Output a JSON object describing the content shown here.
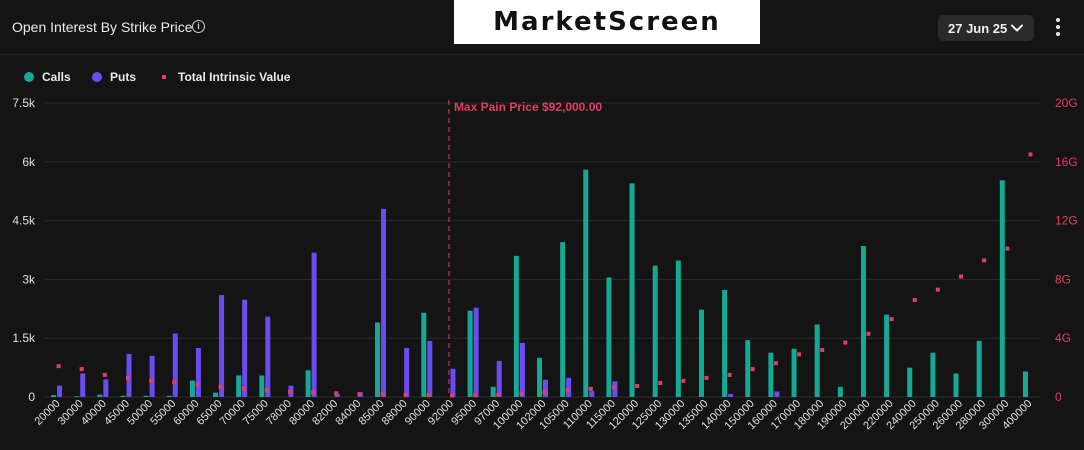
{
  "header": {
    "title": "Open Interest By Strike Price",
    "logo": "MarketScreen",
    "date_selector": "27 Jun 25"
  },
  "legend": [
    {
      "label": "Calls",
      "color": "#14a897"
    },
    {
      "label": "Puts",
      "color": "#6c4cf0"
    },
    {
      "label": "Total Intrinsic Value",
      "color": "#e23d63"
    }
  ],
  "chart_data": {
    "type": "bar",
    "title": "Open Interest By Strike Price",
    "categories": [
      "20000",
      "30000",
      "40000",
      "45000",
      "50000",
      "55000",
      "60000",
      "65000",
      "70000",
      "75000",
      "78000",
      "80000",
      "82000",
      "84000",
      "85000",
      "88000",
      "90000",
      "92000",
      "95000",
      "97000",
      "100000",
      "102000",
      "105000",
      "110000",
      "115000",
      "120000",
      "125000",
      "130000",
      "135000",
      "140000",
      "150000",
      "160000",
      "170000",
      "180000",
      "190000",
      "200000",
      "220000",
      "240000",
      "250000",
      "260000",
      "280000",
      "300000",
      "400000"
    ],
    "series": [
      {
        "name": "Calls",
        "color": "#14a897",
        "axis": "left",
        "values": [
          50,
          20,
          60,
          30,
          30,
          30,
          420,
          110,
          550,
          550,
          0,
          680,
          0,
          0,
          1900,
          0,
          2150,
          0,
          2200,
          260,
          3600,
          1000,
          3950,
          5800,
          3050,
          5450,
          3350,
          3480,
          2230,
          2730,
          1450,
          1130,
          1230,
          1850,
          260,
          3850,
          2100,
          750,
          1130,
          600,
          1430,
          5530,
          650
        ]
      },
      {
        "name": "Puts",
        "color": "#6c4cf0",
        "axis": "left",
        "values": [
          290,
          600,
          450,
          1100,
          1050,
          1620,
          1250,
          2600,
          2480,
          2050,
          290,
          3680,
          80,
          120,
          4800,
          1250,
          1430,
          720,
          2280,
          920,
          1380,
          440,
          490,
          150,
          400,
          0,
          0,
          0,
          0,
          80,
          0,
          140,
          0,
          0,
          0,
          0,
          0,
          0,
          0,
          0,
          0,
          0,
          0
        ]
      },
      {
        "name": "Total Intrinsic Value",
        "color": "#e23d63",
        "axis": "right",
        "type": "scatter",
        "values": [
          2.1,
          1.9,
          1.5,
          1.3,
          1.1,
          1.0,
          0.85,
          0.7,
          0.55,
          0.45,
          0.35,
          0.3,
          0.25,
          0.2,
          0.2,
          0.15,
          0.12,
          0.1,
          0.12,
          0.15,
          0.25,
          0.35,
          0.45,
          0.55,
          0.65,
          0.75,
          0.95,
          1.1,
          1.3,
          1.5,
          1.9,
          2.3,
          2.9,
          3.2,
          3.7,
          4.3,
          5.3,
          6.6,
          7.3,
          8.2,
          9.3,
          10.1,
          16.5
        ]
      }
    ],
    "y_left": {
      "ticks": [
        "0",
        "1.5k",
        "3k",
        "4.5k",
        "6k",
        "7.5k"
      ],
      "min": 0,
      "max": 7500
    },
    "y_right": {
      "ticks": [
        "0",
        "4G",
        "8G",
        "12G",
        "16G",
        "20G"
      ],
      "min": 0,
      "max": 20
    },
    "annotation": {
      "text": "Max Pain Price $92,000.00",
      "category": "92000",
      "color": "#e23d63"
    },
    "grid": true,
    "legend_position": "top-left"
  }
}
